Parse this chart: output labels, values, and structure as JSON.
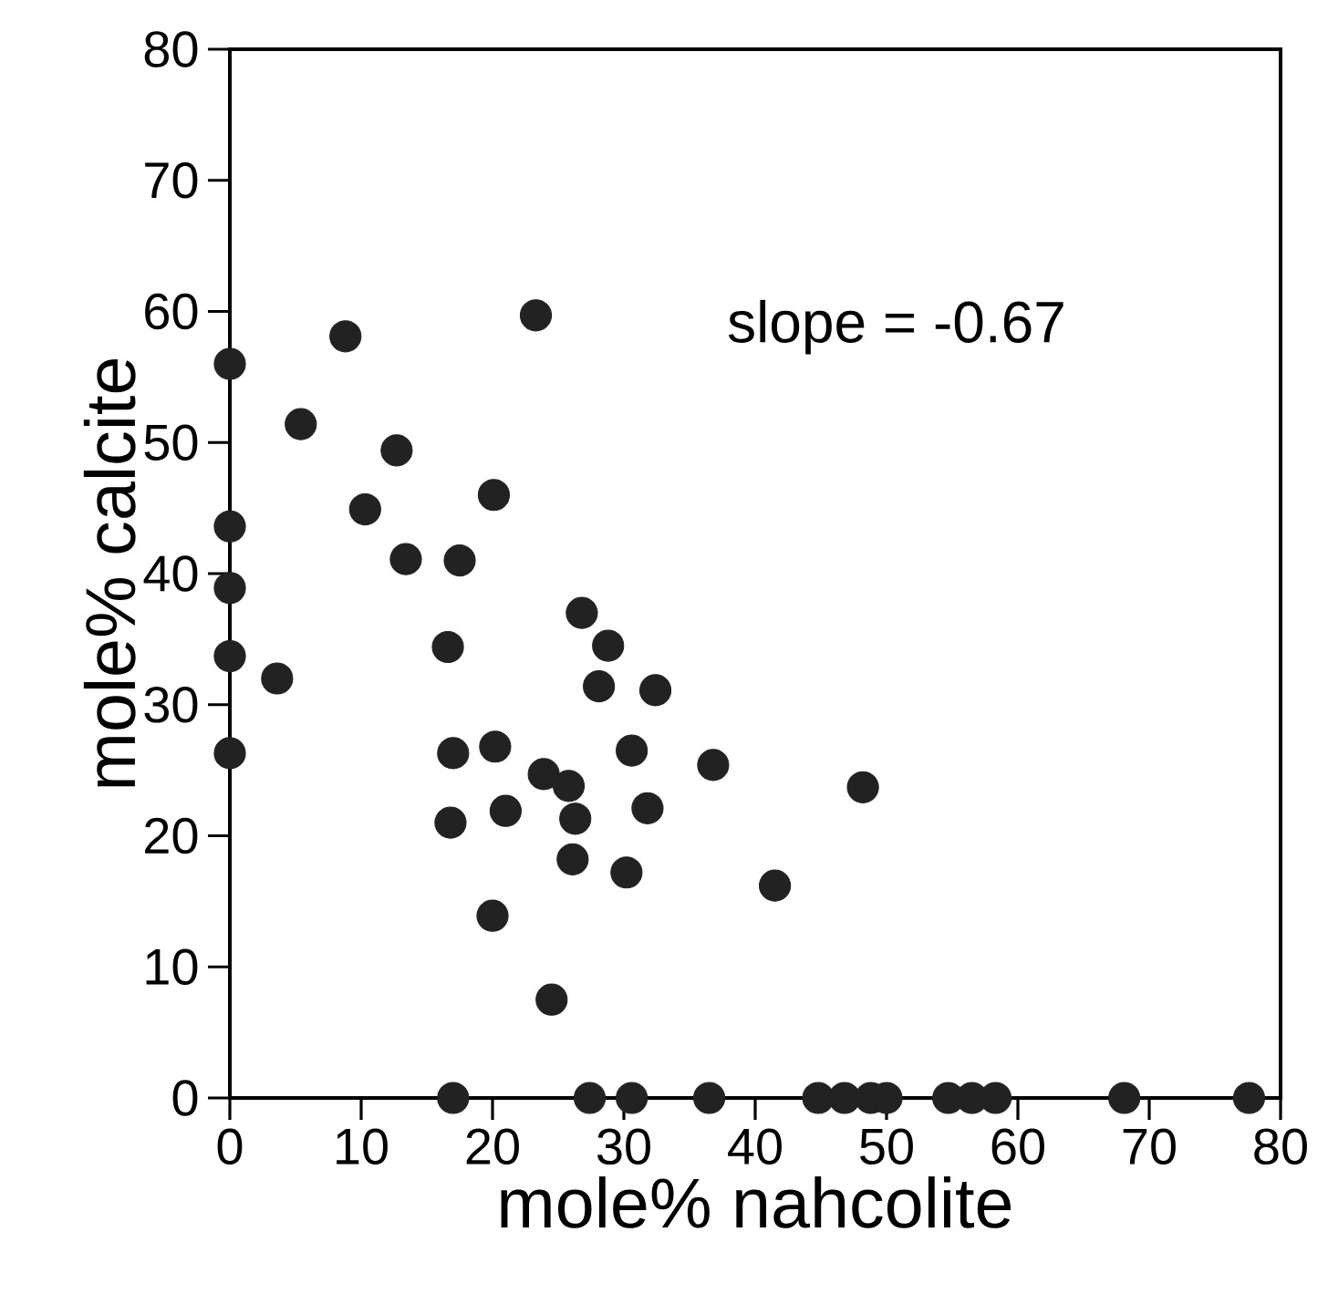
{
  "chart_data": {
    "type": "scatter",
    "xlabel": "mole% nahcolite",
    "ylabel": "mole% calcite",
    "annotations": [
      "slope = -0.67"
    ],
    "xlim": [
      0,
      80
    ],
    "ylim": [
      0,
      80
    ],
    "xticks": [
      0,
      10,
      20,
      30,
      40,
      50,
      60,
      70,
      80
    ],
    "yticks": [
      0,
      10,
      20,
      30,
      40,
      50,
      60,
      70,
      80
    ],
    "grid": false,
    "series": [
      {
        "color": "#222222",
        "x": [
          23.3,
          8.8,
          0,
          5.4,
          12.7,
          20.1,
          10.3,
          0,
          13.4,
          17.5,
          0,
          26.8,
          16.6,
          28.8,
          0,
          3.6,
          28.1,
          32.4,
          0,
          17.0,
          20.2,
          30.6,
          36.8,
          23.9,
          25.8,
          21.0,
          26.3,
          31.8,
          16.8,
          26.1,
          30.2,
          41.5,
          20.0,
          24.5,
          48.2,
          17.0,
          27.4,
          30.6,
          36.5,
          44.8,
          46.8,
          48.8,
          50.0,
          54.7,
          56.5,
          58.3,
          68.1,
          77.6
        ],
        "values": [
          59.7,
          58.1,
          56.0,
          51.4,
          49.4,
          46.0,
          44.9,
          43.6,
          41.1,
          41.0,
          38.9,
          37.0,
          34.4,
          34.5,
          33.7,
          32.0,
          31.4,
          31.1,
          26.3,
          26.3,
          26.8,
          26.5,
          25.4,
          24.7,
          23.8,
          21.9,
          21.3,
          22.1,
          21.0,
          18.2,
          17.2,
          16.2,
          13.9,
          7.5,
          23.7,
          0,
          0,
          0,
          0,
          0,
          0,
          0,
          0,
          0,
          0,
          0,
          0,
          0
        ]
      }
    ]
  }
}
